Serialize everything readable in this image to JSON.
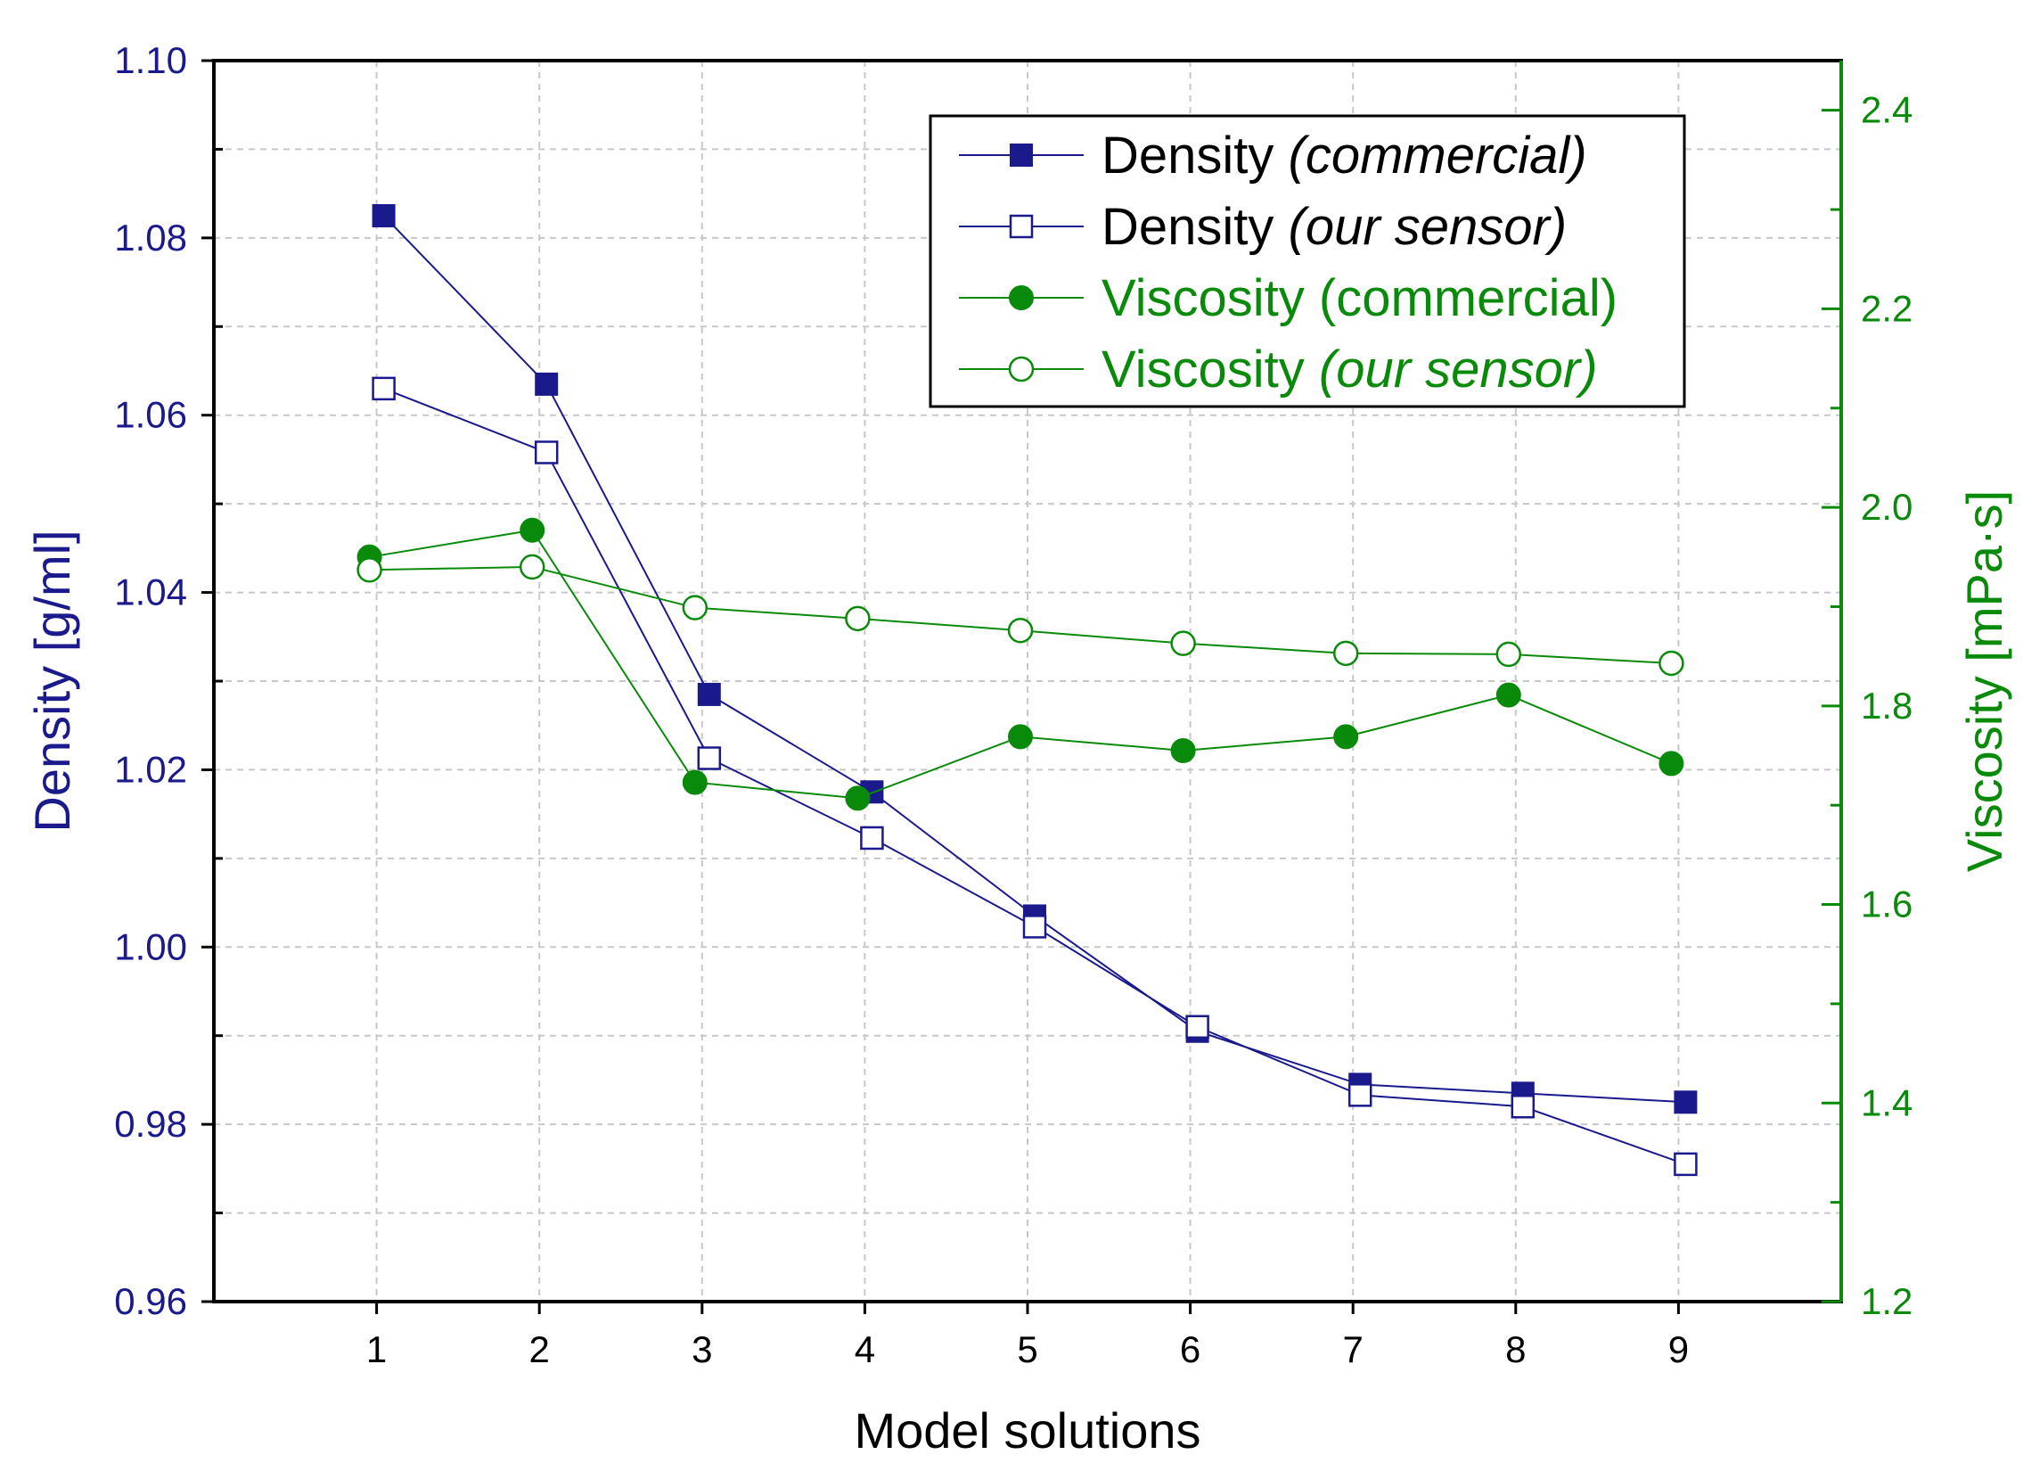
{
  "chart_data": {
    "type": "line",
    "categories": [
      "1",
      "2",
      "3",
      "4",
      "5",
      "6",
      "7",
      "8",
      "9"
    ],
    "x": [
      1,
      2,
      3,
      4,
      5,
      6,
      7,
      8,
      9
    ],
    "xlabel": "Model solutions",
    "xlim": [
      0,
      10
    ],
    "ylabel_left": "Density [g/ml]",
    "ylim_left": [
      0.96,
      1.1
    ],
    "yticks_left": [
      "0.96",
      "0.98",
      "1.00",
      "1.02",
      "1.04",
      "1.06",
      "1.08",
      "1.10"
    ],
    "ylabel_right": "Viscosity [mPa·s]",
    "ylim_right": [
      1.2,
      2.45
    ],
    "yticks_right": [
      "1.2",
      "1.4",
      "1.6",
      "1.8",
      "2.0",
      "2.2",
      "2.4"
    ],
    "grid": true,
    "legend_position": "top-right",
    "series": [
      {
        "name": "Density (commercial)",
        "legend_main": "Density ",
        "legend_suffix": "(commercial)",
        "suffix_italic": true,
        "axis": "left",
        "marker": "filled-square",
        "color": "#1a1a8c",
        "values": [
          1.0825,
          1.0635,
          1.0285,
          1.0175,
          1.0035,
          0.9905,
          0.9845,
          0.9835,
          0.9825
        ]
      },
      {
        "name": "Density (our sensor)",
        "legend_main": "Density ",
        "legend_suffix": "(our sensor)",
        "suffix_italic": true,
        "axis": "left",
        "marker": "open-square",
        "color": "#1a1a8c",
        "values": [
          1.063,
          1.0558,
          1.0213,
          1.0123,
          1.0023,
          0.991,
          0.9833,
          0.982,
          0.9755
        ]
      },
      {
        "name": "Viscosity (commercial)",
        "legend_main": "Viscosity ",
        "legend_suffix": "(commercial)",
        "suffix_italic": false,
        "axis": "right",
        "marker": "filled-circle",
        "color": "#0a8a0a",
        "values": [
          1.95,
          1.977,
          1.723,
          1.707,
          1.769,
          1.755,
          1.769,
          1.811,
          1.742
        ]
      },
      {
        "name": "Viscosity (our sensor)",
        "legend_main": "Viscosity ",
        "legend_suffix": "(our sensor)",
        "suffix_italic": true,
        "axis": "right",
        "marker": "open-circle",
        "color": "#0a8a0a",
        "values": [
          1.937,
          1.94,
          1.899,
          1.888,
          1.876,
          1.863,
          1.853,
          1.852,
          1.843
        ]
      }
    ]
  }
}
